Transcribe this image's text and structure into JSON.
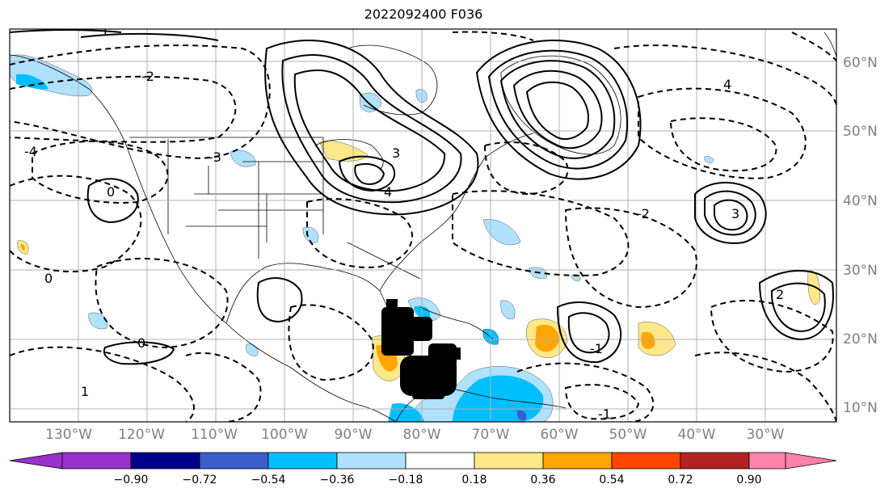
{
  "title": "2022092400 F036",
  "longitude_labels": [
    "130°W",
    "120°W",
    "110°W",
    "100°W",
    "90°W",
    "80°W",
    "70°W",
    "60°W",
    "50°W",
    "40°W",
    "30°W"
  ],
  "latitude_labels": [
    "60°N",
    "50°N",
    "40°N",
    "30°N",
    "20°N",
    "10°N"
  ],
  "colorbar": {
    "ticks": [
      "−0.90",
      "−0.72",
      "−0.54",
      "−0.36",
      "−0.18",
      "0.18",
      "0.36",
      "0.54",
      "0.72",
      "0.90"
    ],
    "colors": [
      "#9932cc",
      "#00008b",
      "#3a5fcd",
      "#00bfff",
      "#b0e2ff",
      "#ffffff",
      "#ffe88a",
      "#ffa500",
      "#ff4500",
      "#b22222",
      "#ff82ab"
    ]
  },
  "contour_labels": [
    "1",
    "2",
    "3",
    "4",
    "-1",
    "-2",
    "-3",
    "-4",
    "0"
  ]
}
